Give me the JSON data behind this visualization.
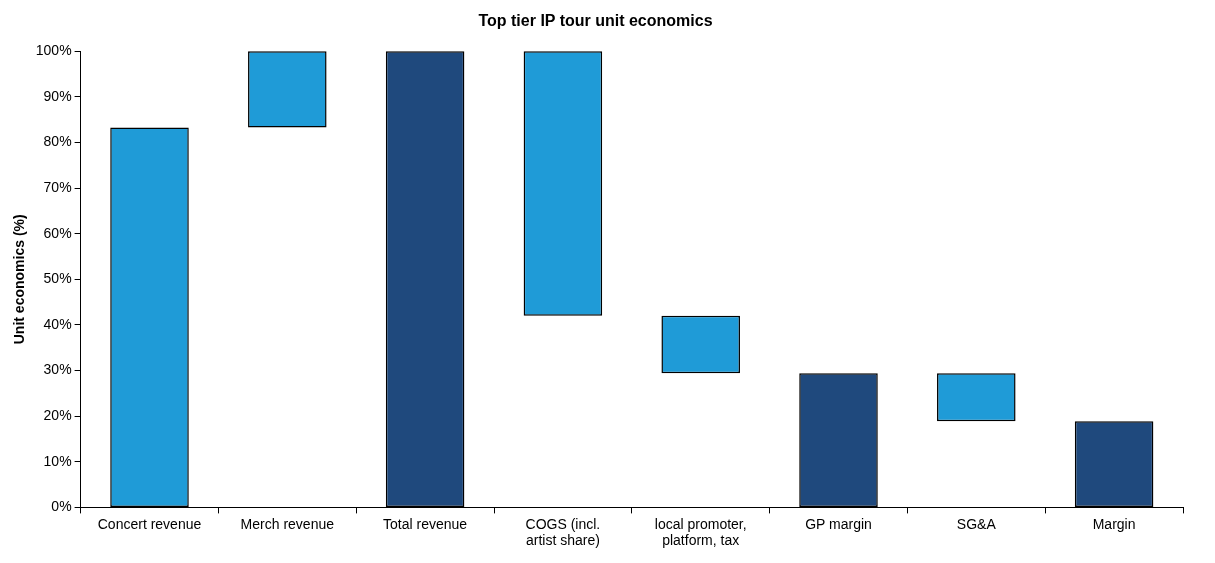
{
  "chart_data": {
    "type": "bar",
    "title": "Top tier IP tour unit economics",
    "ylabel": "Unit economics (%)",
    "categories": [
      "Concert revenue",
      "Merch revenue",
      "Total revenue",
      "COGS (incl.\nartist share)",
      "local promoter,\nplatform, tax",
      "GP margin",
      "SG&A",
      "Margin"
    ],
    "values": [
      83.3,
      16.7,
      100,
      58,
      12.6,
      29.4,
      10.5,
      18.9
    ],
    "base": [
      0,
      83.3,
      0,
      42,
      29.4,
      0,
      18.9,
      0
    ],
    "colors": [
      "#1f9bd7",
      "#1f9bd7",
      "#1f497d",
      "#1f9bd7",
      "#1f9bd7",
      "#1f497d",
      "#1f9bd7",
      "#1f497d"
    ],
    "ylim": [
      0,
      100
    ],
    "yticks": [
      {
        "value": 0,
        "label": "0%"
      },
      {
        "value": 10,
        "label": "10%"
      },
      {
        "value": 20,
        "label": "20%"
      },
      {
        "value": 30,
        "label": "30%"
      },
      {
        "value": 40,
        "label": "40%"
      },
      {
        "value": 50,
        "label": "50%"
      },
      {
        "value": 60,
        "label": "60%"
      },
      {
        "value": 70,
        "label": "70%"
      },
      {
        "value": 80,
        "label": "80%"
      },
      {
        "value": 90,
        "label": "90%"
      },
      {
        "value": 100,
        "label": "100%"
      }
    ],
    "grid": false,
    "legend": false
  }
}
